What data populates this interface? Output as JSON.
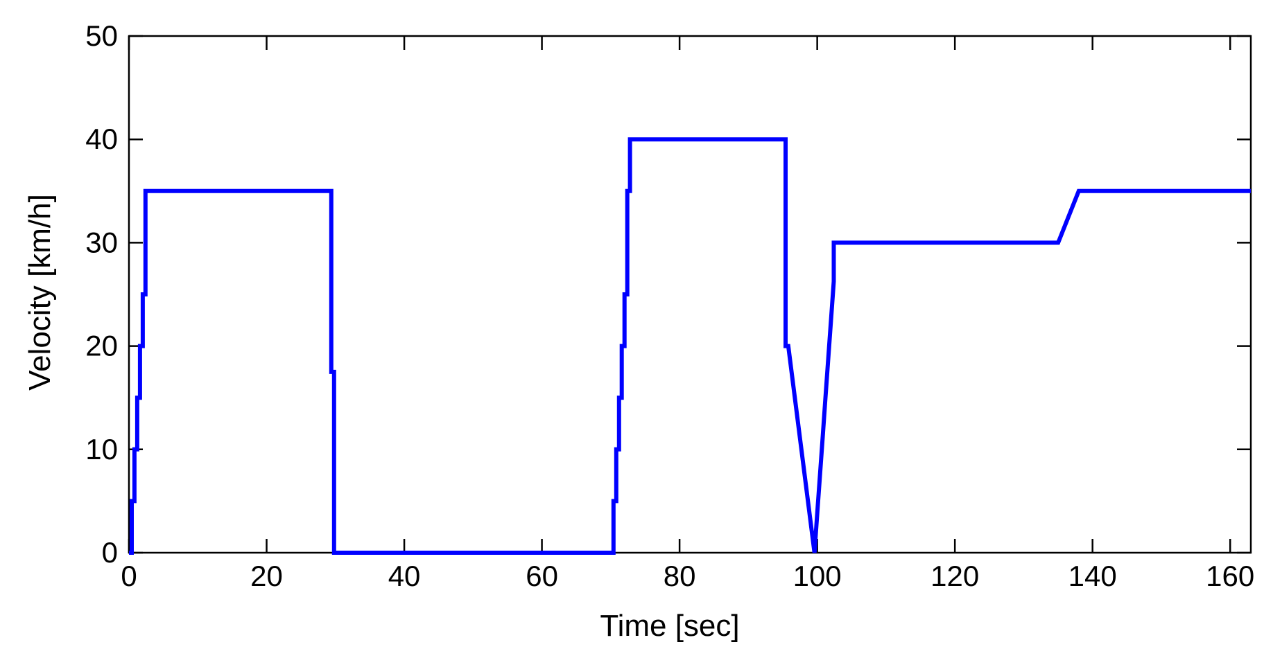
{
  "chart_data": {
    "type": "line",
    "title": "",
    "xlabel": "Time [sec]",
    "ylabel": "Velocity [km/h]",
    "xlim": [
      0,
      163
    ],
    "ylim": [
      0,
      50
    ],
    "x_ticks": [
      "0",
      "20",
      "40",
      "60",
      "80",
      "100",
      "120",
      "140",
      "160"
    ],
    "y_ticks": [
      "0",
      "10",
      "20",
      "30",
      "40",
      "50"
    ],
    "grid": false,
    "series": [
      {
        "color": "#0000ff",
        "x": [
          0,
          0.4,
          0.4,
          0.8,
          0.8,
          1.2,
          1.2,
          1.6,
          1.6,
          2.0,
          2.0,
          2.4,
          2.4,
          29.0,
          29.4,
          29.4,
          29.8,
          29.8,
          70.0,
          70.4,
          70.4,
          70.8,
          70.8,
          71.2,
          71.2,
          71.6,
          71.6,
          72.0,
          72.0,
          72.4,
          72.4,
          72.8,
          72.8,
          95.0,
          95.4,
          95.4,
          95.8,
          99.6,
          99.6,
          100.0,
          100.0,
          100.4,
          100.4,
          100.8,
          100.8,
          101.2,
          101.2,
          101.6,
          101.6,
          102.0,
          102.0,
          102.4,
          102.4,
          135.0,
          138.0,
          163.0
        ],
        "y": [
          0,
          0,
          5,
          5,
          10,
          10,
          15,
          15,
          20,
          20,
          25,
          25,
          35,
          35,
          35,
          17.5,
          17.5,
          0,
          0,
          0,
          5,
          5,
          10,
          10,
          15,
          15,
          20,
          20,
          25,
          25,
          35,
          35,
          40,
          40,
          40,
          20,
          20,
          0,
          0,
          3.75,
          3.75,
          7.5,
          7.5,
          11.25,
          11.25,
          15,
          15,
          18.75,
          18.75,
          22.5,
          22.5,
          26.25,
          30,
          30,
          35,
          35
        ]
      }
    ]
  }
}
